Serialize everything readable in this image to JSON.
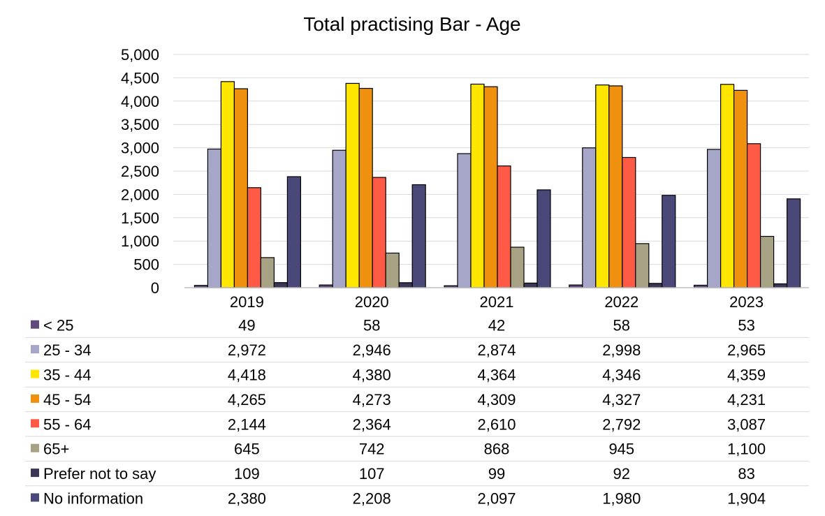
{
  "chart_data": {
    "type": "bar",
    "title": "Total practising Bar - Age",
    "categories": [
      "2019",
      "2020",
      "2021",
      "2022",
      "2023"
    ],
    "ylim": [
      0,
      5000
    ],
    "yticks": [
      0,
      500,
      1000,
      1500,
      2000,
      2500,
      3000,
      3500,
      4000,
      4500,
      5000
    ],
    "ytick_labels": [
      "0",
      "500",
      "1,000",
      "1,500",
      "2,000",
      "2,500",
      "3,000",
      "3,500",
      "4,000",
      "4,500",
      "5,000"
    ],
    "grid": true,
    "legend": "data-table-below",
    "series": [
      {
        "name": "< 25",
        "color": "#604A7B",
        "values": [
          49,
          58,
          42,
          58,
          53
        ],
        "labels": [
          "49",
          "58",
          "42",
          "58",
          "53"
        ]
      },
      {
        "name": "25 - 34",
        "color": "#A6A6C8",
        "values": [
          2972,
          2946,
          2874,
          2998,
          2965
        ],
        "labels": [
          "2,972",
          "2,946",
          "2,874",
          "2,998",
          "2,965"
        ]
      },
      {
        "name": "35 - 44",
        "color": "#FFE600",
        "values": [
          4418,
          4380,
          4364,
          4346,
          4359
        ],
        "labels": [
          "4,418",
          "4,380",
          "4,364",
          "4,346",
          "4,359"
        ]
      },
      {
        "name": "45 - 54",
        "color": "#F0900F",
        "values": [
          4265,
          4273,
          4309,
          4327,
          4231
        ],
        "labels": [
          "4,265",
          "4,273",
          "4,309",
          "4,327",
          "4,231"
        ]
      },
      {
        "name": "55 - 64",
        "color": "#FF5A46",
        "values": [
          2144,
          2364,
          2610,
          2792,
          3087
        ],
        "labels": [
          "2,144",
          "2,364",
          "2,610",
          "2,792",
          "3,087"
        ]
      },
      {
        "name": "65+",
        "color": "#A8A284",
        "values": [
          645,
          742,
          868,
          945,
          1100
        ],
        "labels": [
          "645",
          "742",
          "868",
          "945",
          "1,100"
        ]
      },
      {
        "name": "Prefer not to say",
        "color": "#3B3556",
        "values": [
          109,
          107,
          99,
          92,
          83
        ],
        "labels": [
          "109",
          "107",
          "99",
          "92",
          "83"
        ]
      },
      {
        "name": "No information",
        "color": "#4A4878",
        "values": [
          2380,
          2208,
          2097,
          1980,
          1904
        ],
        "labels": [
          "2,380",
          "2,208",
          "2,097",
          "1,980",
          "1,904"
        ]
      }
    ]
  }
}
